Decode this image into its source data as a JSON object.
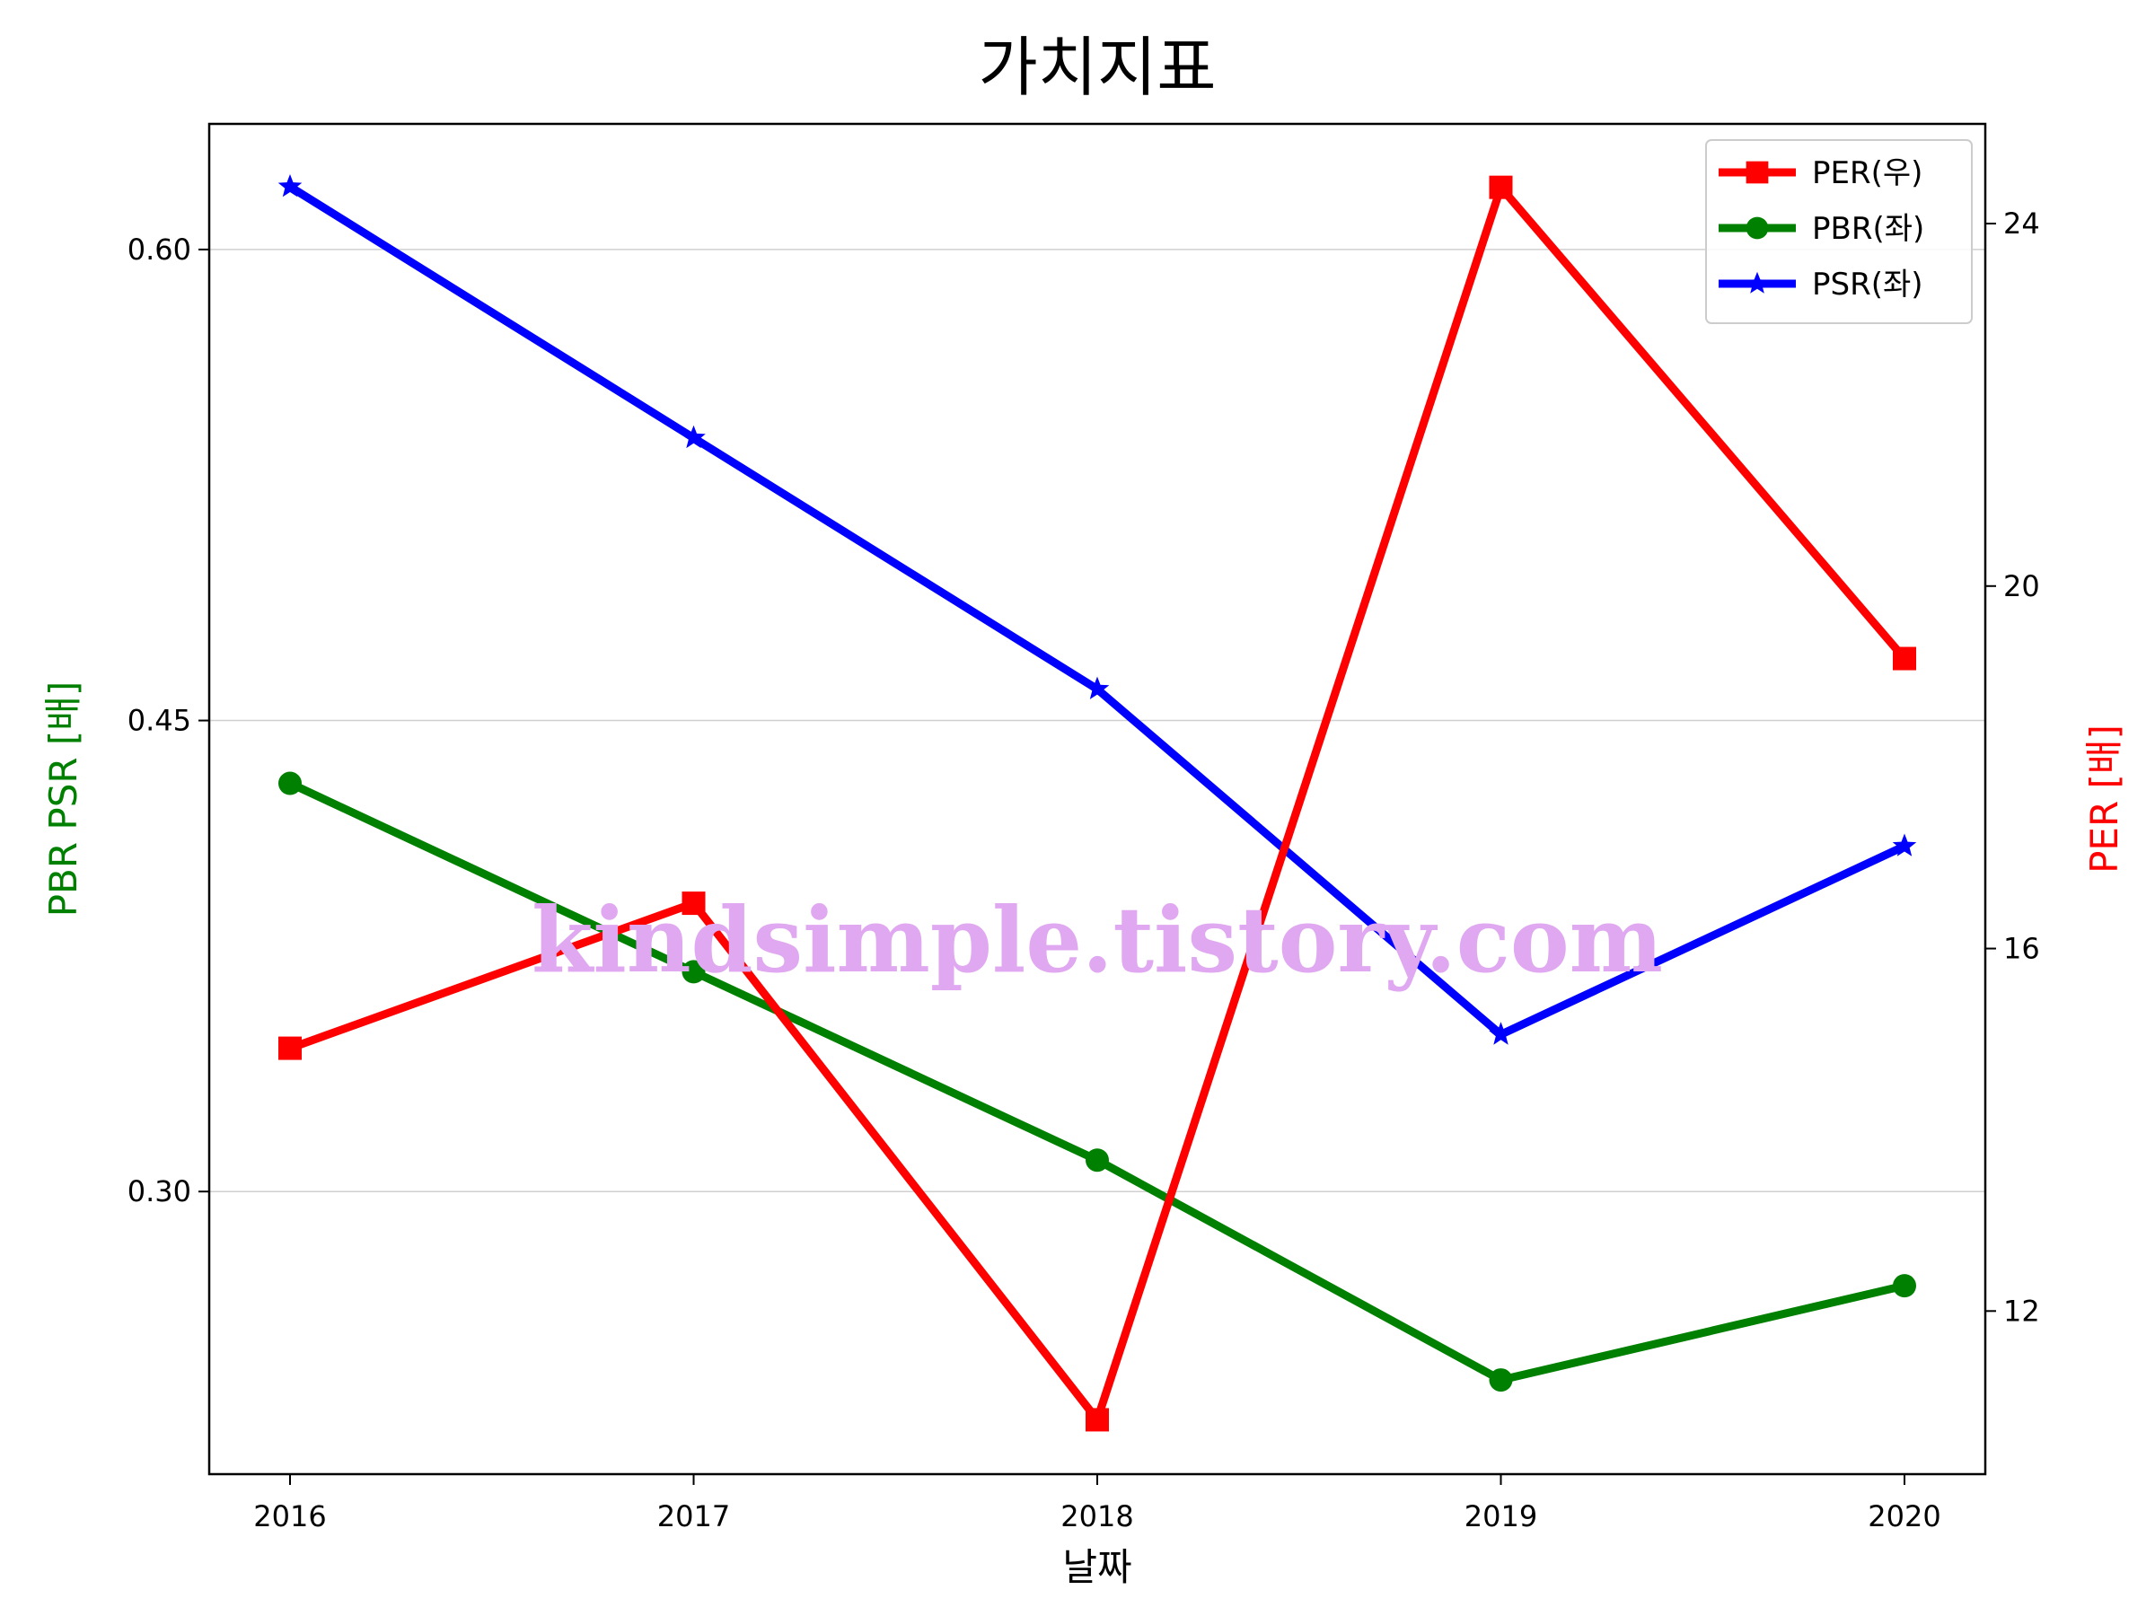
{
  "chart_data": {
    "type": "line",
    "title": "가치지표",
    "xlabel": "날짜",
    "ylabel_left": "PBR PSR [배]",
    "ylabel_right": "PER [배]",
    "x": [
      "2016",
      "2017",
      "2018",
      "2019",
      "2020"
    ],
    "ylim_left": [
      0.21,
      0.64
    ],
    "yticks_left": [
      "0.30",
      "0.45",
      "0.60"
    ],
    "ylim_right": [
      10.2,
      25.1
    ],
    "yticks_right": [
      "12",
      "16",
      "20",
      "24"
    ],
    "grid": "horizontal (left axis)",
    "legend_position": "top-right",
    "series": [
      {
        "name": "PER(우)",
        "axis": "right",
        "color": "#ff0000",
        "marker": "square",
        "values": [
          14.9,
          16.5,
          10.8,
          24.4,
          19.2
        ]
      },
      {
        "name": "PBR(좌)",
        "axis": "left",
        "color": "#008000",
        "marker": "circle",
        "values": [
          0.43,
          0.37,
          0.31,
          0.24,
          0.27
        ]
      },
      {
        "name": "PSR(좌)",
        "axis": "left",
        "color": "#0000ff",
        "marker": "star",
        "values": [
          0.62,
          0.54,
          0.46,
          0.35,
          0.41
        ]
      }
    ]
  },
  "watermark": "kindsimple.tistory.com"
}
